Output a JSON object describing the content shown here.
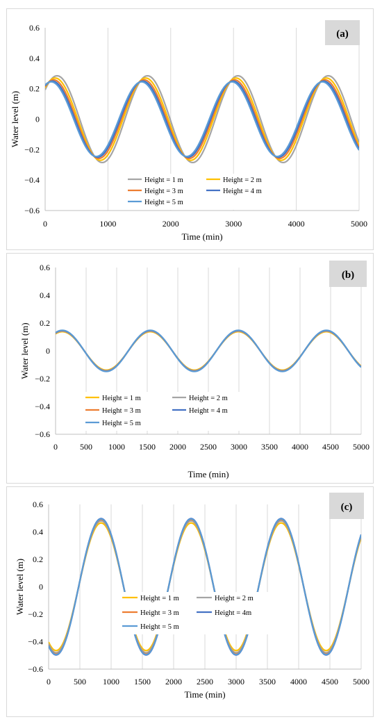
{
  "chart_data": [
    {
      "type": "line",
      "panel_label": "(a)",
      "xlabel": "Time (min)",
      "ylabel": "Water level (m)",
      "xlim": [
        0,
        5000
      ],
      "ylim": [
        -0.6,
        0.6
      ],
      "xticks": [
        0,
        1000,
        2000,
        3000,
        4000,
        5000
      ],
      "yticks": [
        -0.6,
        -0.4,
        -0.2,
        0,
        0.2,
        0.4,
        0.6
      ],
      "ytick_labels": [
        "−0.6",
        "−0.4",
        "−0.2",
        "0",
        "0.2",
        "0.4",
        "0.6"
      ],
      "grid": "vertical",
      "legend_placement": "lower-center",
      "period_min": 1440,
      "series": [
        {
          "name": "Height = 1 m",
          "color": "#a5a5a5",
          "amplitude": 0.285,
          "peak_time_min": 190
        },
        {
          "name": "Height = 2 m",
          "color": "#ffc000",
          "amplitude": 0.27,
          "peak_time_min": 160
        },
        {
          "name": "Height = 3 m",
          "color": "#ed7d31",
          "amplitude": 0.258,
          "peak_time_min": 135
        },
        {
          "name": "Height = 4 m",
          "color": "#4472c4",
          "amplitude": 0.25,
          "peak_time_min": 115
        },
        {
          "name": "Height = 5 m",
          "color": "#5b9bd5",
          "amplitude": 0.245,
          "peak_time_min": 95
        }
      ]
    },
    {
      "type": "line",
      "panel_label": "(b)",
      "xlabel": "Time (min)",
      "ylabel": "Water level (m)",
      "xlim": [
        0,
        5000
      ],
      "ylim": [
        -0.6,
        0.6
      ],
      "xticks": [
        0,
        500,
        1000,
        1500,
        2000,
        2500,
        3000,
        3500,
        4000,
        4500,
        5000
      ],
      "yticks": [
        -0.6,
        -0.4,
        -0.2,
        0,
        0.2,
        0.4,
        0.6
      ],
      "ytick_labels": [
        "−0.6",
        "−0.4",
        "−0.2",
        "0",
        "0.2",
        "0.4",
        "0.6"
      ],
      "grid": "vertical",
      "legend_placement": "lower-center",
      "period_min": 1440,
      "series": [
        {
          "name": "Height = 1 m",
          "color": "#ffc000",
          "amplitude": 0.138,
          "peak_time_min": 110
        },
        {
          "name": "Height = 2 m",
          "color": "#a5a5a5",
          "amplitude": 0.142,
          "peak_time_min": 110
        },
        {
          "name": "Height = 3 m",
          "color": "#ed7d31",
          "amplitude": 0.145,
          "peak_time_min": 110
        },
        {
          "name": "Height = 4 m",
          "color": "#4472c4",
          "amplitude": 0.147,
          "peak_time_min": 110
        },
        {
          "name": "Height = 5 m",
          "color": "#5b9bd5",
          "amplitude": 0.148,
          "peak_time_min": 110
        }
      ]
    },
    {
      "type": "line",
      "panel_label": "(c)",
      "xlabel": "Time (min)",
      "ylabel": "Water level (m)",
      "xlim": [
        0,
        5000
      ],
      "ylim": [
        -0.6,
        0.6
      ],
      "xticks": [
        0,
        500,
        1000,
        1500,
        2000,
        2500,
        3000,
        3500,
        4000,
        4500,
        5000
      ],
      "yticks": [
        -0.6,
        -0.4,
        -0.2,
        0,
        0.2,
        0.4,
        0.6
      ],
      "ytick_labels": [
        "−0.6",
        "−0.4",
        "−0.2",
        "0",
        "0.2",
        "0.4",
        "0.6"
      ],
      "grid": "vertical",
      "legend_placement": "center",
      "period_min": 1440,
      "series": [
        {
          "name": "Height = 1 m",
          "color": "#ffc000",
          "amplitude": 0.465,
          "peak_time_min": 840
        },
        {
          "name": "Height = 2 m",
          "color": "#a5a5a5",
          "amplitude": 0.48,
          "peak_time_min": 840
        },
        {
          "name": "Height = 3 m",
          "color": "#ed7d31",
          "amplitude": 0.49,
          "peak_time_min": 840
        },
        {
          "name": "Height = 4m",
          "color": "#4472c4",
          "amplitude": 0.497,
          "peak_time_min": 840
        },
        {
          "name": "Height = 5 m",
          "color": "#5b9bd5",
          "amplitude": 0.494,
          "peak_time_min": 840
        }
      ]
    }
  ]
}
